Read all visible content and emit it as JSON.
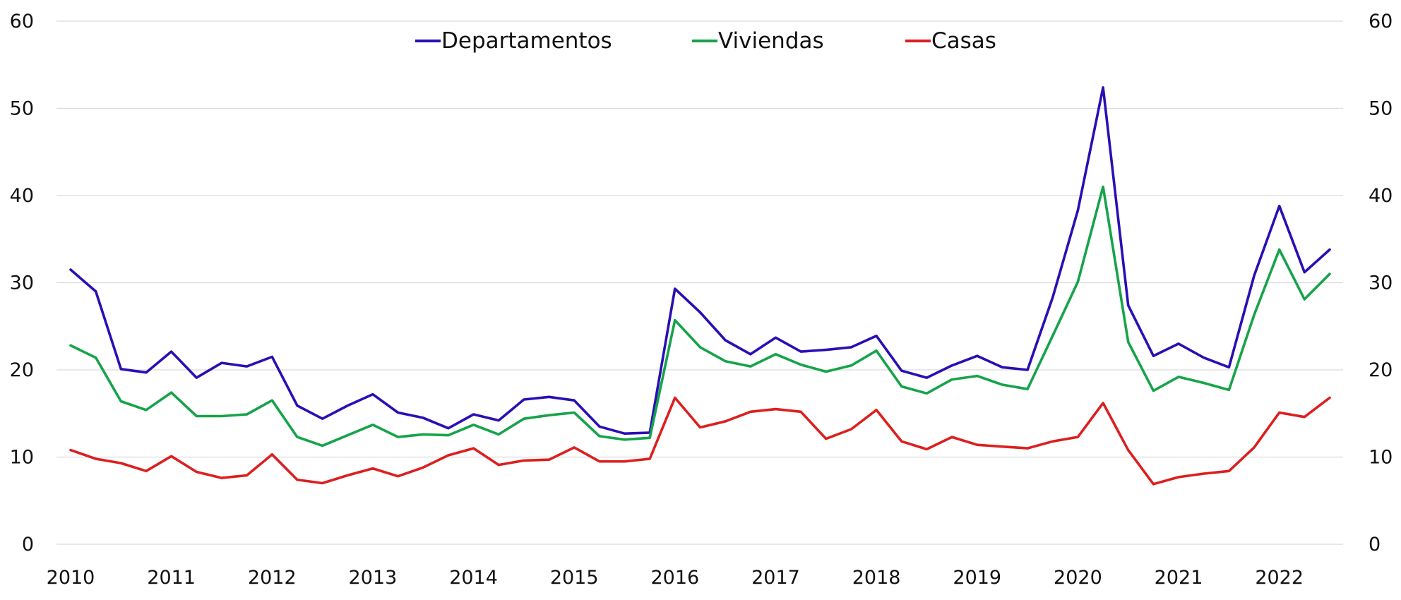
{
  "chart_data": {
    "type": "line",
    "title": "",
    "xlabel": "",
    "ylabel": "",
    "ylim": [
      0,
      60
    ],
    "yticks": [
      0,
      10,
      20,
      30,
      40,
      50,
      60
    ],
    "y_tick_labels": [
      "0",
      "10",
      "20",
      "30",
      "40",
      "50",
      "60"
    ],
    "x_tick_labels": [
      "2010",
      "2011",
      "2012",
      "2013",
      "2014",
      "2015",
      "2016",
      "2017",
      "2018",
      "2019",
      "2020",
      "2021",
      "2022"
    ],
    "grid": true,
    "legend_position": "top-center",
    "series": [
      {
        "name": "Departamentos",
        "color": "#2a0fb4",
        "values": [
          31.5,
          29.0,
          20.1,
          19.7,
          22.1,
          19.1,
          20.8,
          20.4,
          21.5,
          15.9,
          14.4,
          15.9,
          17.2,
          15.1,
          14.5,
          13.3,
          14.9,
          14.2,
          16.6,
          16.9,
          16.5,
          13.5,
          12.7,
          12.8,
          29.3,
          26.6,
          23.4,
          21.8,
          23.7,
          22.1,
          22.3,
          22.6,
          23.9,
          19.9,
          19.1,
          20.5,
          21.6,
          20.3,
          20.0,
          28.3,
          38.3,
          52.4,
          27.4,
          21.6,
          23.0,
          21.4,
          20.3,
          30.8,
          38.8,
          31.2,
          33.8
        ]
      },
      {
        "name": "Viviendas",
        "color": "#16a34a",
        "values": [
          22.8,
          21.4,
          16.4,
          15.4,
          17.4,
          14.7,
          14.7,
          14.9,
          16.5,
          12.3,
          11.3,
          12.5,
          13.7,
          12.3,
          12.6,
          12.5,
          13.7,
          12.6,
          14.4,
          14.8,
          15.1,
          12.4,
          12.0,
          12.2,
          25.7,
          22.6,
          21.0,
          20.4,
          21.8,
          20.6,
          19.8,
          20.5,
          22.2,
          18.1,
          17.3,
          18.9,
          19.3,
          18.3,
          17.8,
          23.9,
          30.1,
          41.0,
          23.2,
          17.6,
          19.2,
          18.5,
          17.7,
          26.3,
          33.8,
          28.1,
          31.0
        ]
      },
      {
        "name": "Casas",
        "color": "#dc1f1f",
        "values": [
          10.8,
          9.8,
          9.3,
          8.4,
          10.1,
          8.3,
          7.6,
          7.9,
          10.3,
          7.4,
          7.0,
          7.9,
          8.7,
          7.8,
          8.8,
          10.2,
          11.0,
          9.1,
          9.6,
          9.7,
          11.1,
          9.5,
          9.5,
          9.8,
          16.8,
          13.4,
          14.1,
          15.2,
          15.5,
          15.2,
          12.1,
          13.2,
          15.4,
          11.8,
          10.9,
          12.3,
          11.4,
          11.2,
          11.0,
          11.8,
          12.3,
          16.2,
          10.8,
          6.9,
          7.7,
          8.1,
          8.4,
          11.1,
          15.1,
          14.6,
          16.8
        ]
      }
    ]
  }
}
